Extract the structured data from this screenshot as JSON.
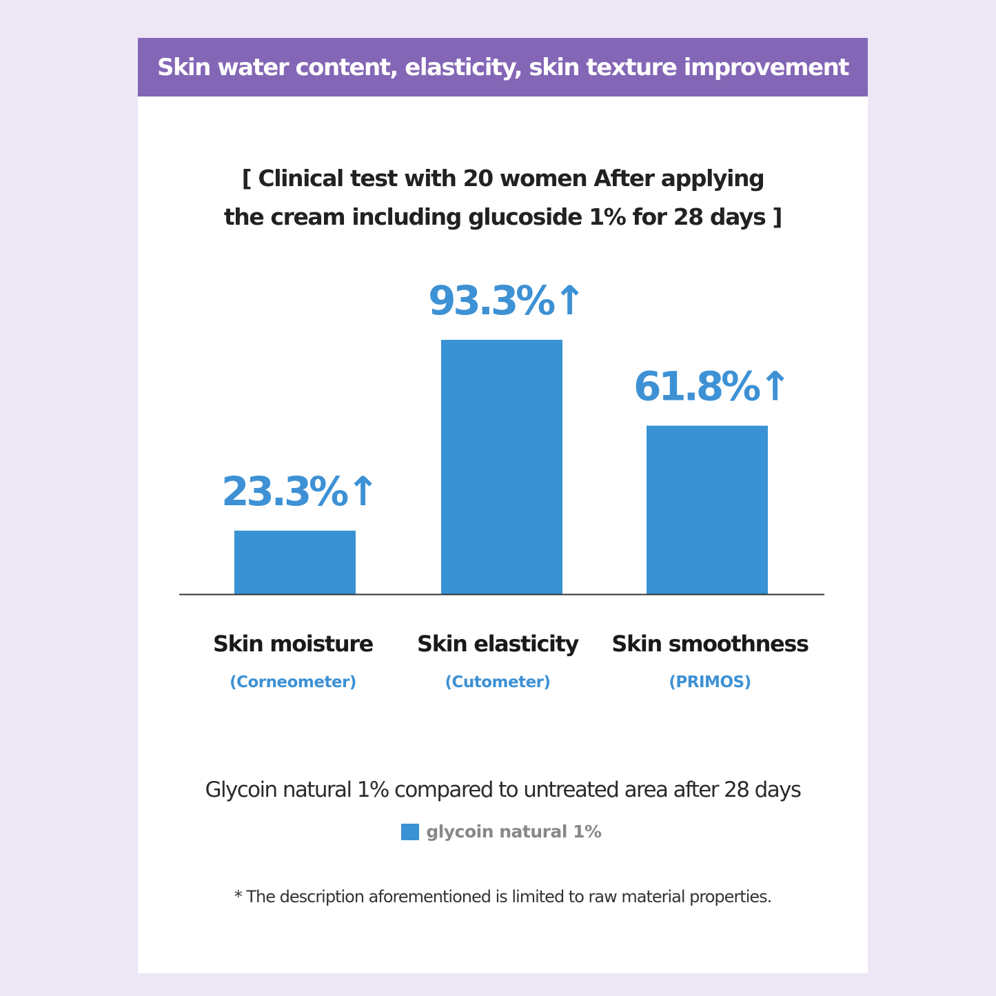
{
  "header": {
    "title": "Skin water content, elasticity, skin texture improvement"
  },
  "subtitle": {
    "line1": "[ Clinical test with 20 women After applying",
    "line2": "the cream including glucoside 1% for 28 days ]"
  },
  "caption": "Glycoin natural 1% compared to untreated area after 28 days",
  "footnote": "* The description aforementioned is limited to raw material properties.",
  "colors": {
    "bar": "#3992d3",
    "value_label": "#3d91d4",
    "header_bg": "#8466b6",
    "background": "#ece6f5"
  },
  "chart_data": {
    "type": "bar",
    "title": "[ Clinical test with 20 women After applying the cream including glucoside 1% for 28 days ]",
    "categories": [
      "Skin moisture",
      "Skin elasticity",
      "Skin smoothness"
    ],
    "category_sublabels": [
      "(Corneometer)",
      "(Cutometer)",
      "(PRIMOS)"
    ],
    "series": [
      {
        "name": "glycoin natural 1%",
        "values": [
          23.3,
          93.3,
          61.8
        ]
      }
    ],
    "data_labels": [
      "23.3%↑",
      "93.3%↑",
      "61.8%↑"
    ],
    "ylim": [
      0,
      100
    ],
    "grid": false,
    "legend_position": "bottom-center",
    "xlabel": "",
    "ylabel": ""
  }
}
